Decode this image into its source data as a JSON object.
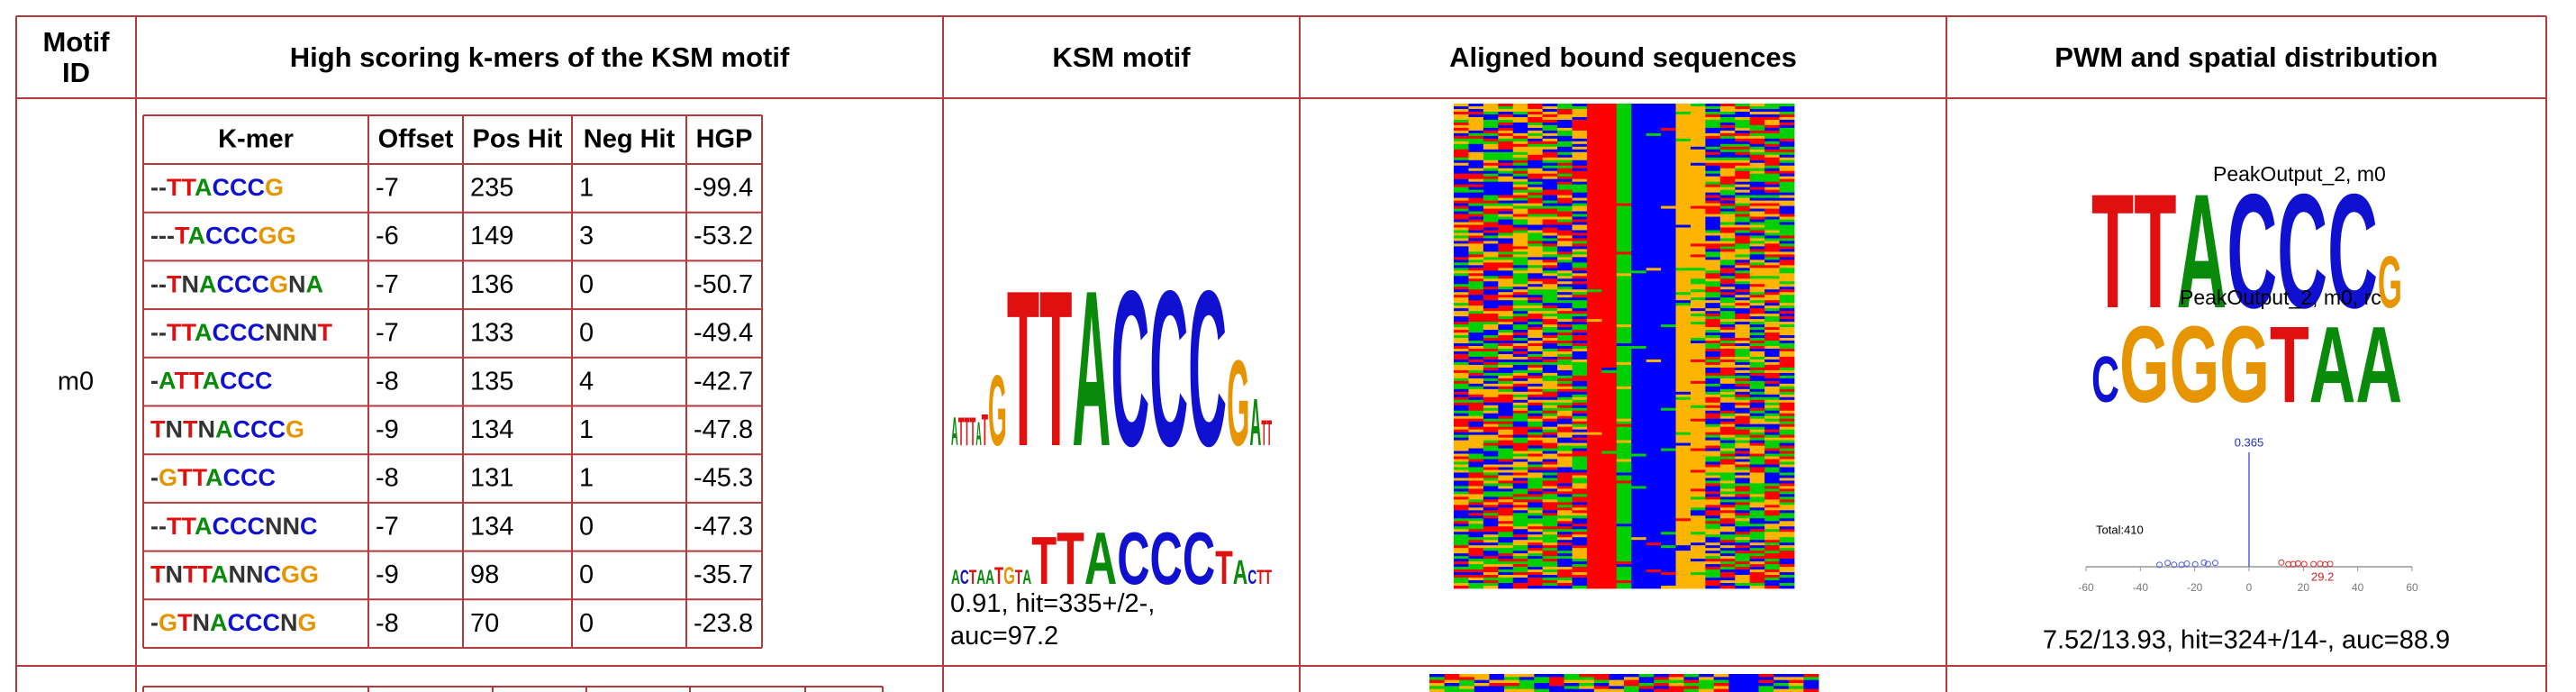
{
  "header": {
    "columns": [
      "Motif ID",
      "High scoring k-mers of the KSM motif",
      "KSM motif",
      "Aligned bound sequences",
      "PWM and spatial distribution"
    ]
  },
  "rows": [
    {
      "motif_id": "m0",
      "kmers": {
        "header": [
          "K-mer",
          "Offset",
          "Pos Hit",
          "Neg Hit",
          "HGP"
        ],
        "rows": [
          [
            "--TTACCCG",
            -7,
            235,
            1,
            -99.4
          ],
          [
            "---TACCCGG",
            -6,
            149,
            3,
            -53.2
          ],
          [
            "--TNACCCGNA",
            -7,
            136,
            0,
            -50.7
          ],
          [
            "--TTACCCNNNT",
            -7,
            133,
            0,
            -49.4
          ],
          [
            "-ATTACCC",
            -8,
            135,
            4,
            -42.7
          ],
          [
            "TNTNACCCG",
            -9,
            134,
            1,
            -47.8
          ],
          [
            "-GTTACCC",
            -8,
            131,
            1,
            -45.3
          ],
          [
            "--TTACCCNNC",
            -7,
            134,
            0,
            -47.3
          ],
          [
            "TNTTANNCGG",
            -9,
            98,
            0,
            -35.7
          ],
          [
            "-GTNACCCNG",
            -8,
            70,
            0,
            -23.8
          ]
        ]
      },
      "ksm_logo": [
        "ATTTATGTTACCCGATT",
        "ACTAATGTATTACCCTACTT"
      ],
      "ksm_caption": "0.91, hit=335+/2-, auc=97.2",
      "pwm": {
        "label": "PeakOutput_2, m0",
        "logo": "TTACCCG",
        "rc_label": "PeakOutput_2, m0, rc",
        "rc_logo": "CGGGTAA",
        "total": "Total:410",
        "peak_label": "0.365",
        "secondary_label": "29.2",
        "xticks": [
          -60,
          -40,
          -20,
          0,
          20,
          40,
          60
        ],
        "xlim": [
          -60,
          60
        ]
      },
      "pwm_caption": "7.52/13.93, hit=324+/14-, auc=88.9"
    }
  ]
}
